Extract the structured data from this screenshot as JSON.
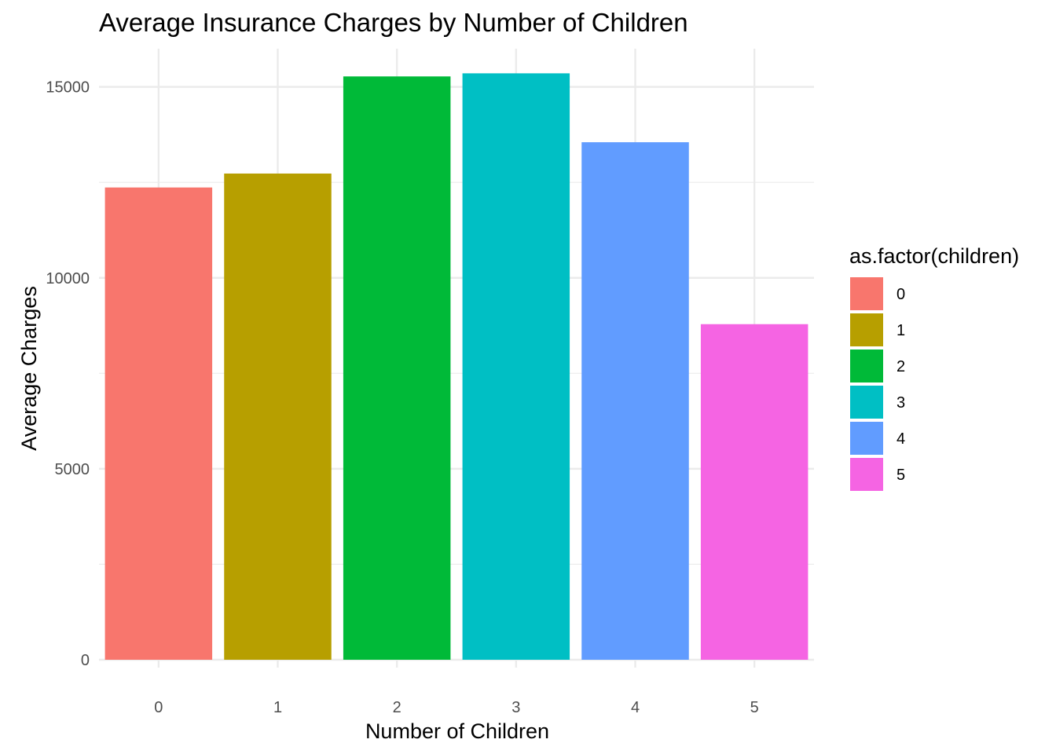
{
  "chart_data": {
    "type": "bar",
    "title": "Average Insurance Charges by Number of Children",
    "xlabel": "Number of Children",
    "ylabel": "Average Charges",
    "categories": [
      "0",
      "1",
      "2",
      "3",
      "4",
      "5"
    ],
    "values": [
      12366,
      12731,
      15274,
      15355,
      13551,
      8787
    ],
    "colors": [
      "#F8766D",
      "#B79F00",
      "#00BA38",
      "#00BFC4",
      "#619CFF",
      "#F564E3"
    ],
    "ylim": [
      0,
      16000
    ],
    "yticks": [
      0,
      5000,
      10000,
      15000
    ],
    "grid": true,
    "legend": {
      "title": "as.factor(children)",
      "position": "right",
      "labels": [
        "0",
        "1",
        "2",
        "3",
        "4",
        "5"
      ]
    }
  }
}
